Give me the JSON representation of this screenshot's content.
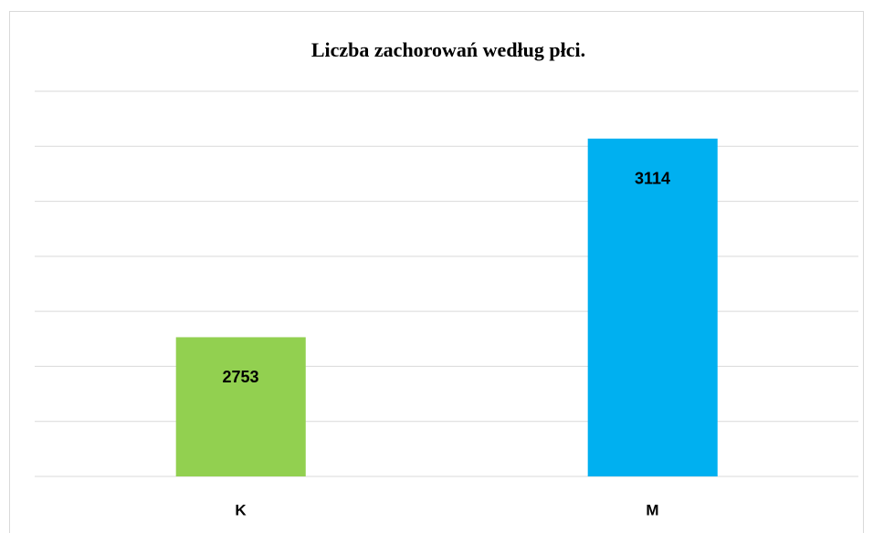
{
  "chart_data": {
    "type": "bar",
    "title": "Liczba zachorowań według płci.",
    "categories": [
      "K",
      "M"
    ],
    "values": [
      2753,
      3114
    ],
    "colors": [
      "#92d050",
      "#00b0f0"
    ],
    "ylim": [
      2500,
      3200
    ],
    "yticks": [
      2500,
      2600,
      2700,
      2800,
      2900,
      3000,
      3100,
      3200
    ],
    "grid": true
  }
}
